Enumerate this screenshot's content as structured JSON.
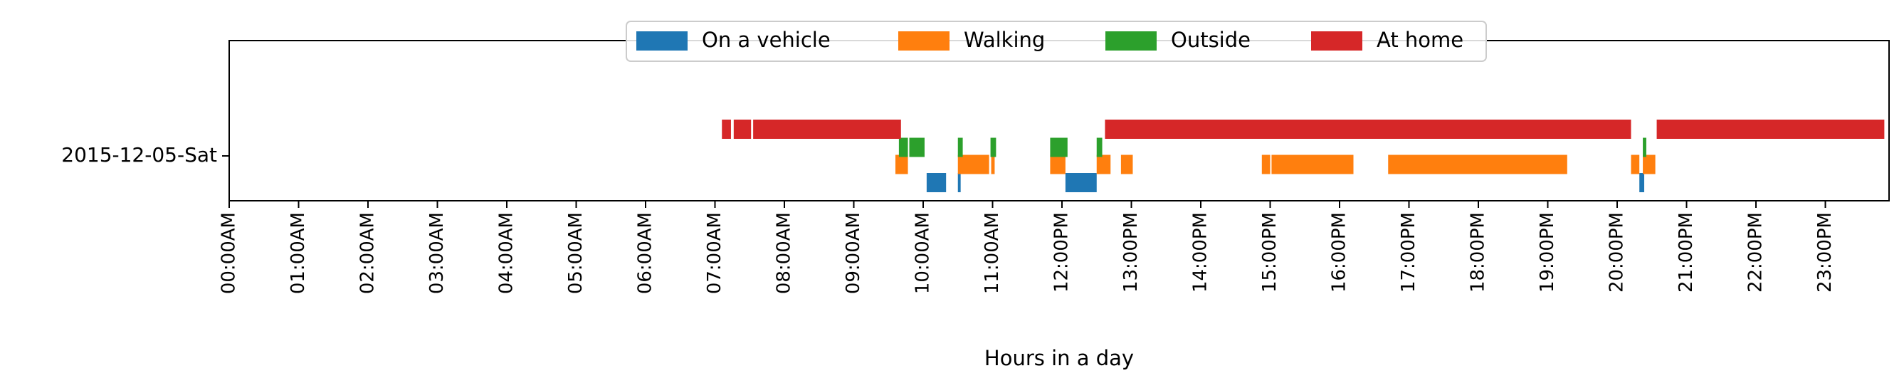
{
  "chart_data": {
    "type": "bar",
    "title": "",
    "xlabel": "Hours in a day",
    "ylabel": "",
    "xlim": [
      0,
      24
    ],
    "y_category": "2015-12-05-Sat",
    "tick_labels": [
      "00:00AM",
      "01:00AM",
      "02:00AM",
      "03:00AM",
      "04:00AM",
      "05:00AM",
      "06:00AM",
      "07:00AM",
      "08:00AM",
      "09:00AM",
      "10:00AM",
      "11:00AM",
      "12:00PM",
      "13:00PM",
      "14:00PM",
      "15:00PM",
      "16:00PM",
      "17:00PM",
      "18:00PM",
      "19:00PM",
      "20:00PM",
      "21:00PM",
      "22:00PM",
      "23:00PM"
    ],
    "grid": false,
    "legend_position": "top-center",
    "series": [
      {
        "name": "On a vehicle",
        "color": "#1f77b4",
        "row_offset": -0.25,
        "intervals": [
          [
            10.05,
            10.33
          ],
          [
            10.5,
            10.54
          ],
          [
            12.05,
            12.5
          ],
          [
            20.32,
            20.39
          ]
        ]
      },
      {
        "name": "Walking",
        "color": "#ff7f0e",
        "row_offset": -0.08,
        "intervals": [
          [
            9.6,
            9.78
          ],
          [
            10.5,
            10.95
          ],
          [
            10.98,
            11.03
          ],
          [
            11.83,
            12.05
          ],
          [
            12.5,
            12.7
          ],
          [
            12.85,
            13.02
          ],
          [
            14.88,
            15.0
          ],
          [
            15.02,
            16.2
          ],
          [
            16.7,
            19.28
          ],
          [
            20.2,
            20.32
          ],
          [
            20.37,
            20.55
          ]
        ]
      },
      {
        "name": "Outside",
        "color": "#2ca02c",
        "row_offset": 0.08,
        "intervals": [
          [
            9.65,
            9.78
          ],
          [
            9.8,
            10.02
          ],
          [
            10.5,
            10.57
          ],
          [
            10.97,
            11.05
          ],
          [
            11.83,
            12.08
          ],
          [
            12.5,
            12.58
          ],
          [
            20.37,
            20.42
          ]
        ]
      },
      {
        "name": "At home",
        "color": "#d62728",
        "row_offset": 0.25,
        "intervals": [
          [
            7.1,
            7.23
          ],
          [
            7.27,
            7.52
          ],
          [
            7.55,
            9.68
          ],
          [
            12.62,
            20.2
          ],
          [
            20.57,
            23.85
          ]
        ]
      }
    ]
  }
}
